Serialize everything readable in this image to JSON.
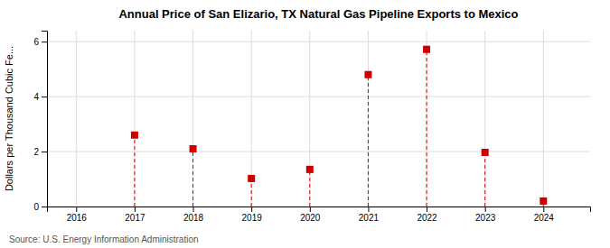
{
  "chart_data": {
    "type": "scatter",
    "title": "Annual Price of San Elizario, TX Natural Gas Pipeline Exports to Mexico",
    "ylabel": "Dollars per Thousand Cubic Fe...",
    "annotations": [
      "Source: U.S. Energy Information Administration"
    ],
    "x": [
      2017,
      2018,
      2019,
      2020,
      2021,
      2022,
      2023,
      2024
    ],
    "values": [
      2.6,
      2.1,
      1.02,
      1.35,
      4.8,
      5.72,
      1.97,
      0.2
    ],
    "color": "#cc0000",
    "marker": "square",
    "line_style": "dashed",
    "xlim": [
      2015.5,
      2024.8
    ],
    "ylim": [
      0,
      6.4
    ],
    "xticks": [
      2016,
      2017,
      2018,
      2019,
      2020,
      2021,
      2022,
      2023,
      2024
    ],
    "yticks": [
      0,
      2,
      4,
      6
    ],
    "grid": true
  }
}
